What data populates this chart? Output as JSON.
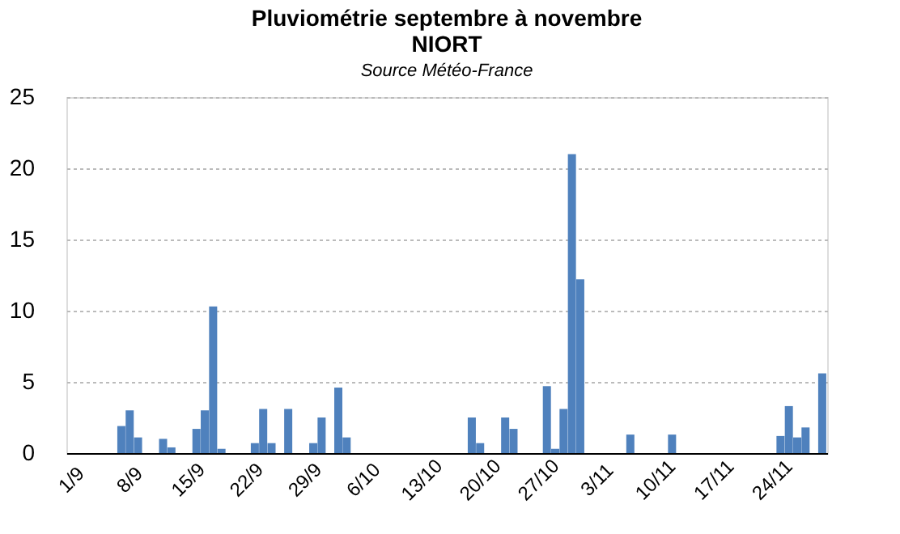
{
  "chart_data": {
    "type": "bar",
    "title": "Pluviométrie septembre à novembre\nNIORT",
    "subtitle": "Source Météo-France",
    "categories": [
      "1/9",
      null,
      null,
      null,
      null,
      null,
      null,
      "8/9",
      null,
      null,
      null,
      null,
      null,
      null,
      "15/9",
      null,
      null,
      null,
      null,
      null,
      null,
      "22/9",
      null,
      null,
      null,
      null,
      null,
      null,
      "29/9",
      null,
      null,
      null,
      null,
      null,
      null,
      "6/10",
      null,
      null,
      null,
      null,
      null,
      null,
      "13/10",
      null,
      null,
      null,
      null,
      null,
      null,
      "20/10",
      null,
      null,
      null,
      null,
      null,
      null,
      "27/10",
      null,
      null,
      null,
      null,
      null,
      null,
      "3/11",
      null,
      null,
      null,
      null,
      null,
      null,
      "10/11",
      null,
      null,
      null,
      null,
      null,
      null,
      "17/11",
      null,
      null,
      null,
      null,
      null,
      null,
      "24/11",
      null,
      null,
      null,
      null,
      null,
      null
    ],
    "values": [
      0,
      0,
      0,
      0,
      0,
      0,
      1.9,
      3.0,
      1.1,
      0,
      0,
      1.0,
      0.4,
      0,
      0,
      1.7,
      3.0,
      10.3,
      0.3,
      0,
      0,
      0,
      0.7,
      3.1,
      0.7,
      0,
      3.1,
      0,
      0,
      0.7,
      2.5,
      0,
      4.6,
      1.1,
      0,
      0,
      0,
      0,
      0,
      0,
      0,
      0,
      0,
      0,
      0,
      0,
      0,
      0,
      2.5,
      0.7,
      0,
      0,
      2.5,
      1.7,
      0,
      0,
      0,
      4.7,
      0.3,
      3.1,
      21.0,
      12.2,
      0,
      0,
      0,
      0,
      0,
      1.3,
      0,
      0,
      0,
      0,
      1.3,
      0,
      0,
      0,
      0,
      0,
      0,
      0,
      0,
      0,
      0,
      0,
      0,
      1.2,
      3.3,
      1.1,
      1.8,
      0,
      5.6
    ],
    "color": "#4f81bd",
    "ylim": [
      0,
      25
    ],
    "yticks": [
      0,
      5,
      10,
      15,
      20,
      25
    ],
    "grid": "y"
  }
}
